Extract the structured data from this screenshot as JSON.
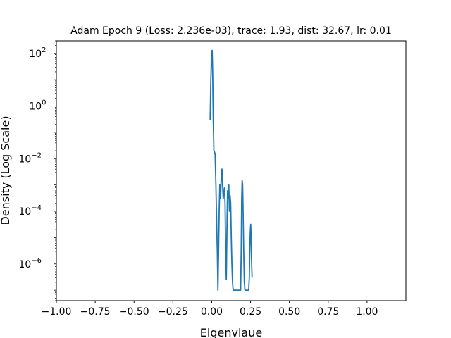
{
  "chart_data": {
    "type": "line",
    "title": "Adam Epoch 9 (Loss: 2.236e-03), trace: 1.93, dist: 32.67, lr: 0.01",
    "xlabel": "Eigenvlaue",
    "ylabel": "Density (Log Scale)",
    "xlim": [
      -1.0,
      1.25
    ],
    "ylim": [
      4e-08,
      300
    ],
    "yscale": "log",
    "grid": false,
    "x_ticks": [
      -1.0,
      -0.75,
      -0.5,
      -0.25,
      0.0,
      0.25,
      0.5,
      0.75,
      1.0
    ],
    "x_tick_labels": [
      "−1.00",
      "−0.75",
      "−0.50",
      "−0.25",
      "0.00",
      "0.25",
      "0.50",
      "0.75",
      "1.00"
    ],
    "y_ticks": [
      {
        "value": 1e-06,
        "base": "10",
        "exp": "−6"
      },
      {
        "value": 0.0001,
        "base": "10",
        "exp": "−4"
      },
      {
        "value": 0.01,
        "base": "10",
        "exp": "−2"
      },
      {
        "value": 1,
        "base": "10",
        "exp": "0"
      },
      {
        "value": 100,
        "base": "10",
        "exp": "2"
      }
    ],
    "series": [
      {
        "color": "#1f77b4",
        "x": [
          -0.01,
          -0.006,
          -0.002,
          0.0,
          0.003,
          0.006,
          0.01,
          0.014,
          0.018,
          0.022,
          0.027,
          0.032,
          0.036,
          0.04,
          0.044,
          0.048,
          0.052,
          0.057,
          0.062,
          0.066,
          0.07,
          0.074,
          0.078,
          0.082,
          0.086,
          0.09,
          0.094,
          0.098,
          0.102,
          0.106,
          0.11,
          0.114,
          0.118,
          0.122,
          0.126,
          0.13,
          0.134,
          0.138,
          0.142,
          0.146,
          0.15,
          0.154,
          0.158,
          0.162,
          0.166,
          0.17,
          0.176,
          0.182,
          0.186,
          0.19,
          0.193,
          0.196,
          0.199,
          0.202,
          0.206,
          0.21,
          0.214,
          0.218,
          0.222,
          0.228,
          0.234,
          0.238,
          0.242,
          0.245,
          0.248,
          0.251,
          0.254,
          0.257,
          0.26
        ],
        "y": [
          0.3,
          8,
          60,
          120,
          130,
          20,
          0.3,
          0.02,
          0.018,
          0.015,
          0.001,
          3e-05,
          3e-06,
          1e-07,
          3e-06,
          0.0001,
          0.001,
          0.0003,
          0.003,
          0.004,
          0.001,
          0.0003,
          0.0005,
          0.0008,
          0.0002,
          2e-06,
          2.5e-07,
          2e-05,
          0.0006,
          0.0003,
          0.001,
          0.0001,
          0.0004,
          0.0002,
          1e-05,
          1e-06,
          2e-07,
          1e-07,
          1e-07,
          1e-07,
          1e-07,
          1e-07,
          1e-07,
          1e-07,
          1e-07,
          1e-07,
          1e-07,
          1e-07,
          1e-07,
          3e-06,
          0.0003,
          0.0015,
          0.001,
          0.0001,
          3e-06,
          2e-07,
          1e-07,
          1e-07,
          1e-07,
          1e-07,
          1e-07,
          1e-07,
          3e-07,
          3e-06,
          1.5e-05,
          3.2e-05,
          1e-05,
          1e-06,
          3e-07
        ]
      }
    ]
  }
}
